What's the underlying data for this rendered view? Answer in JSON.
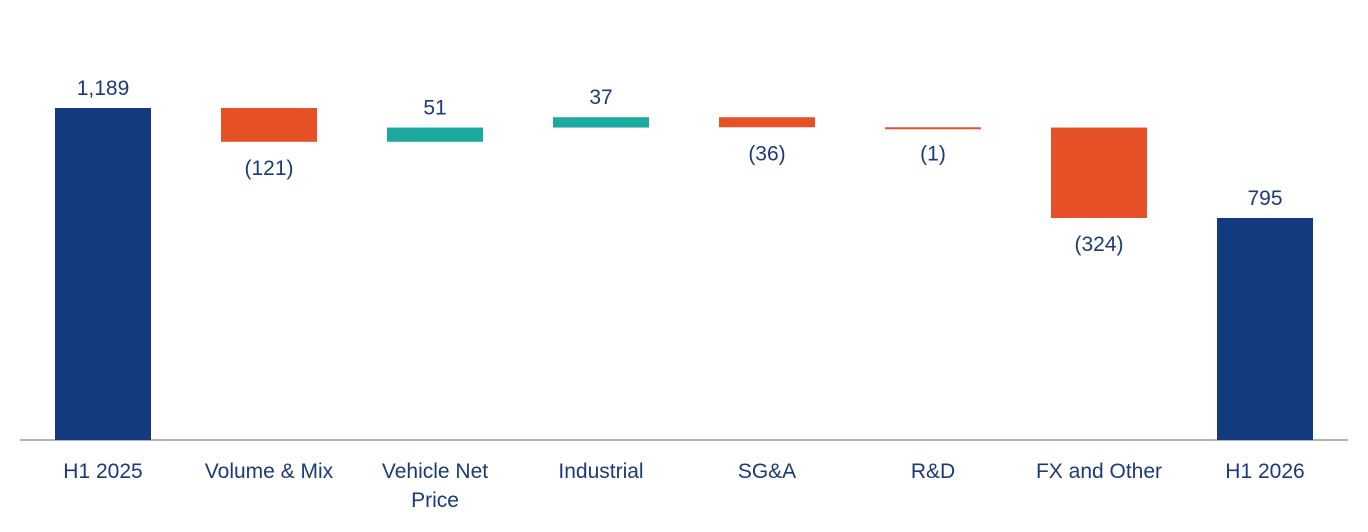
{
  "chart_data": {
    "type": "bar",
    "subtype": "waterfall",
    "title": "",
    "xlabel": "",
    "ylabel": "",
    "grid": false,
    "legend": "none",
    "categories": [
      "H1 2025",
      "Volume & Mix",
      "Vehicle Net Price",
      "Industrial",
      "SG&A",
      "R&D",
      "FX and Other",
      "H1 2026"
    ],
    "category_lines": [
      [
        "H1 2025"
      ],
      [
        "Volume & Mix"
      ],
      [
        "Vehicle Net",
        "Price"
      ],
      [
        "Industrial"
      ],
      [
        "SG&A"
      ],
      [
        "R&D"
      ],
      [
        "FX and Other"
      ],
      [
        "H1 2026"
      ]
    ],
    "values": [
      1189,
      -121,
      51,
      37,
      -36,
      -1,
      -324,
      795
    ],
    "kinds": [
      "total",
      "delta",
      "delta",
      "delta",
      "delta",
      "delta",
      "delta",
      "total"
    ],
    "data_labels": [
      "1,189",
      "(121)",
      "51",
      "37",
      "(36)",
      "(1)",
      "(324)",
      "795"
    ],
    "ylim": [
      0,
      1189
    ],
    "colors": {
      "total": "#143a80",
      "increase": "#1ba9a0",
      "decrease": "#e65127",
      "axis": "#b3b3b3",
      "text": "#1a3a7a"
    }
  }
}
